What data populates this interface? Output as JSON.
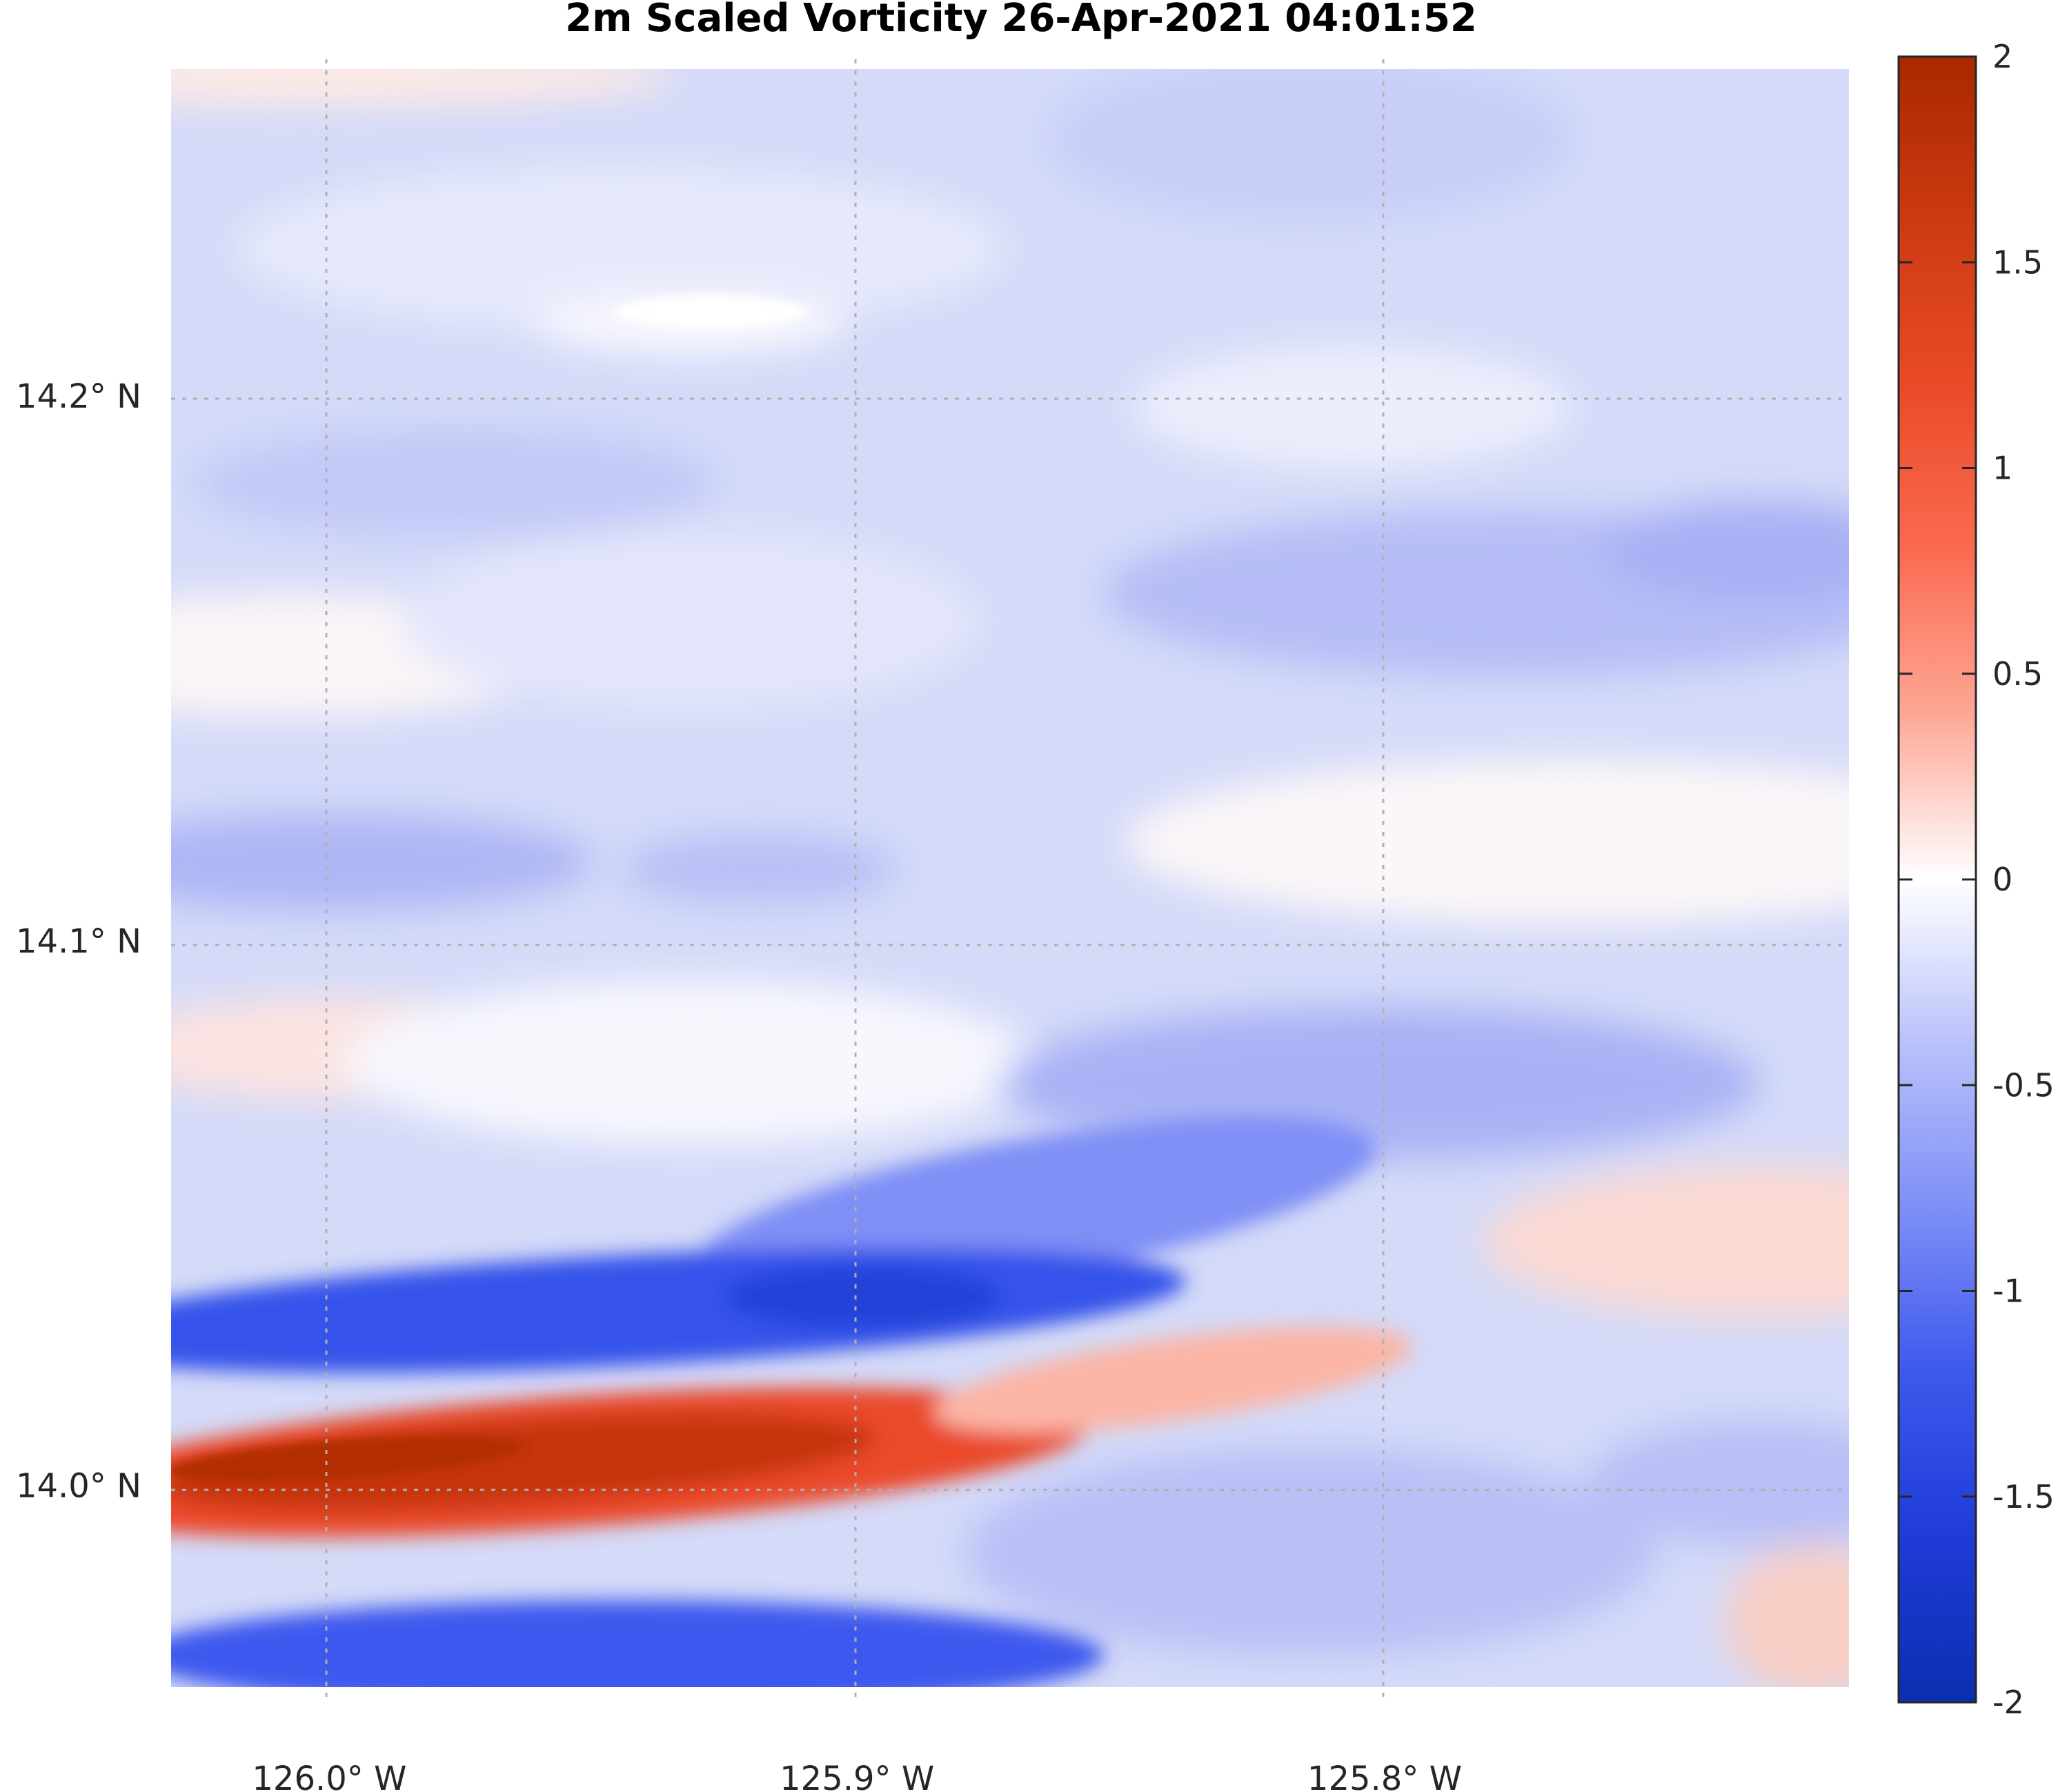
{
  "chart_data": {
    "type": "heatmap",
    "title": "2m Scaled Vorticity  26-Apr-2021 04:01:52",
    "x_ticks": [
      {
        "value": -126.0,
        "label": "126.0° W"
      },
      {
        "value": -125.9,
        "label": "125.9° W"
      },
      {
        "value": -125.8,
        "label": "125.8° W"
      }
    ],
    "y_ticks": [
      {
        "value": 14.2,
        "label": "14.2° N"
      },
      {
        "value": 14.1,
        "label": "14.1° N"
      },
      {
        "value": 14.0,
        "label": "14.0° N"
      }
    ],
    "xlim": [
      -126.03,
      -125.712
    ],
    "ylim": [
      13.963,
      14.26
    ],
    "grid": true,
    "colorbar": {
      "range": [
        -2,
        2
      ],
      "ticks": [
        {
          "value": 2,
          "label": "2"
        },
        {
          "value": 1.5,
          "label": "1.5"
        },
        {
          "value": 1,
          "label": "1"
        },
        {
          "value": 0.5,
          "label": "0.5"
        },
        {
          "value": 0,
          "label": "0"
        },
        {
          "value": -0.5,
          "label": "-0.5"
        },
        {
          "value": -1,
          "label": "-1"
        },
        {
          "value": -1.5,
          "label": "-1.5"
        },
        {
          "value": -2,
          "label": "-2"
        }
      ],
      "colormap": "blue-white-red diverging",
      "colors": {
        "neg": "#0a2fb0",
        "mid": "#ffffff",
        "pos": "#a82800"
      }
    },
    "field_features": [
      {
        "name": "positive band",
        "lon_start": -126.03,
        "lon_end": -125.8,
        "lat": 14.005,
        "peak": 1.8
      },
      {
        "name": "negative band",
        "lon_start": -126.03,
        "lon_end": -125.8,
        "lat": 14.04,
        "peak": -1.3
      },
      {
        "name": "southern negative",
        "lon_start": -126.03,
        "lon_end": -125.8,
        "lat": 13.965,
        "peak": -1.1
      }
    ]
  }
}
